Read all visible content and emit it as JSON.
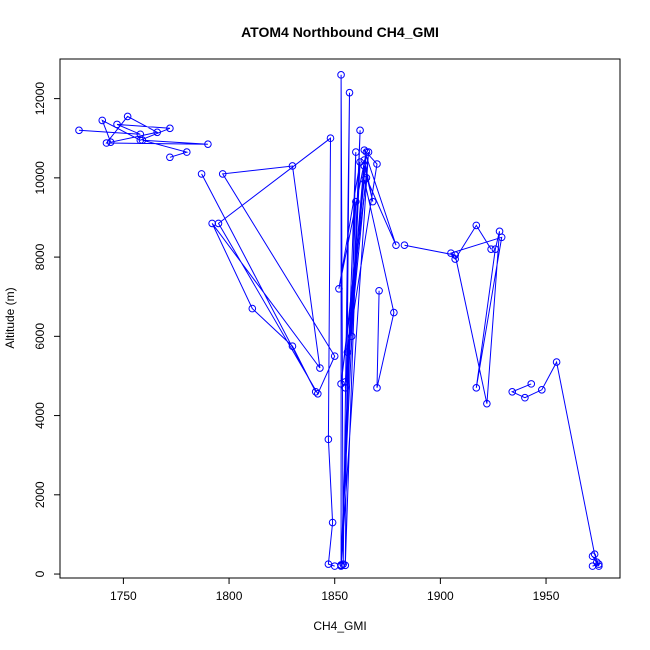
{
  "chart_data": {
    "type": "line",
    "title": "ATOM4 Northbound CH4_GMI",
    "xlabel": "CH4_GMI",
    "ylabel": "Altitude (m)",
    "xlim": [
      1720,
      1985
    ],
    "ylim": [
      -100,
      13000
    ],
    "x_ticks": [
      1750,
      1800,
      1850,
      1900,
      1950
    ],
    "y_ticks": [
      0,
      2000,
      4000,
      6000,
      8000,
      10000,
      12000
    ],
    "color": "#0000ff",
    "marker": "open-circle",
    "series": [
      {
        "x": [
          1729,
          1758,
          1747,
          1772,
          1758,
          1740,
          1744,
          1766,
          1752,
          1742,
          1790,
          1759,
          1780,
          1772
        ],
        "y": [
          11200,
          11100,
          11350,
          11250,
          10950,
          11450,
          10900,
          11150,
          11550,
          10880,
          10850,
          10950,
          10650,
          10520
        ]
      },
      {
        "x": [
          1787,
          1841,
          1830,
          1811,
          1792,
          1843,
          1830,
          1797,
          1850,
          1842,
          1795,
          1848,
          1847,
          1849,
          1847,
          1850
        ],
        "y": [
          10100,
          4600,
          5750,
          6700,
          8850,
          5200,
          10300,
          10100,
          5500,
          4550,
          8850,
          11000,
          3400,
          1300,
          250,
          200
        ]
      },
      {
        "x": [
          1853,
          1853,
          1854,
          1857,
          1855,
          1862,
          1858,
          1860,
          1853,
          1862,
          1852,
          1865,
          1855,
          1866,
          1853,
          1860
        ],
        "y": [
          220,
          12600,
          250,
          12150,
          220,
          11200,
          6000,
          10650,
          230,
          10400,
          7200,
          10650,
          4700,
          10650,
          200,
          9400
        ]
      },
      {
        "x": [
          1855,
          1864,
          1868,
          1864,
          1856,
          1870,
          1864,
          1879,
          1865,
          1853,
          1864,
          1878,
          1870,
          1871
        ],
        "y": [
          4850,
          10450,
          9400,
          10300,
          5600,
          10350,
          10700,
          8300,
          10000,
          4800,
          9950,
          6600,
          4700,
          7150
        ]
      },
      {
        "x": [
          1883,
          1907,
          1922,
          1928,
          1926,
          1917,
          1929,
          1905,
          1907,
          1917,
          1924
        ],
        "y": [
          8300,
          8050,
          4300,
          8650,
          8200,
          4700,
          8500,
          8100,
          7950,
          8800,
          8200
        ]
      },
      {
        "x": [
          1943,
          1934,
          1940,
          1948,
          1955,
          1973,
          1975,
          1972,
          1974,
          1975,
          1972
        ],
        "y": [
          4800,
          4600,
          4450,
          4650,
          5350,
          500,
          200,
          450,
          300,
          250,
          200
        ]
      }
    ]
  }
}
